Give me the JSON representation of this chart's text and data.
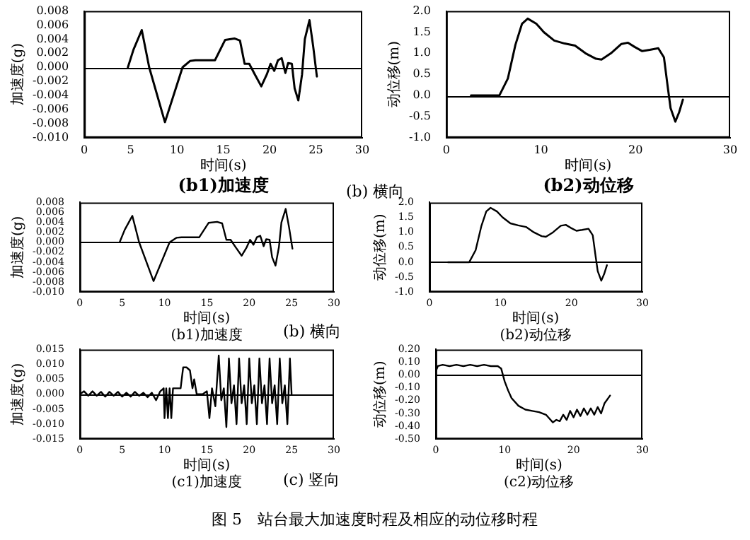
{
  "chart_data": [
    {
      "type": "line",
      "title": "(b1)加速度",
      "xlabel": "时间(s)",
      "ylabel": "加速度(g)",
      "color": "#000000",
      "annotations": [
        "(b) 横向"
      ],
      "ref_lines": [
        {
          "axis": "y",
          "value": 0
        }
      ],
      "x": [
        4.7,
        5.3,
        6.2,
        7.0,
        8.7,
        10.6,
        11.4,
        12.0,
        14.1,
        15.2,
        16.2,
        16.8,
        17.3,
        17.8,
        18.4,
        19.1,
        19.7,
        20.1,
        20.5,
        20.9,
        21.3,
        21.7,
        22.0,
        22.4,
        22.7,
        23.1,
        23.5,
        23.8,
        24.3,
        24.7,
        25.1
      ],
      "values": [
        0,
        0.0025,
        0.0053,
        0,
        -0.0078,
        0,
        0.0009,
        0.001,
        0.001,
        0.0039,
        0.0041,
        0.0038,
        0.0005,
        0.0005,
        -0.001,
        -0.0027,
        -0.001,
        0.0005,
        -0.0005,
        0.001,
        0.0013,
        -0.0008,
        0.0006,
        0.0005,
        -0.003,
        -0.0047,
        -0.001,
        0.004,
        0.0067,
        0.003,
        -0.0013
      ],
      "xlim": [
        0,
        30
      ],
      "xticks": [
        0,
        5,
        10,
        15,
        20,
        25,
        30
      ],
      "ylim": [
        -0.01,
        0.008
      ],
      "yticks": [
        {
          "value": 0.008,
          "label": "0.008"
        },
        {
          "value": 0.006,
          "label": "0.006"
        },
        {
          "value": 0.004,
          "label": "0.004"
        },
        {
          "value": 0.002,
          "label": "0.002"
        },
        {
          "value": 0,
          "label": "0.000"
        },
        {
          "value": -0.002,
          "label": "-0.002"
        },
        {
          "value": -0.004,
          "label": "-0.004"
        },
        {
          "value": -0.006,
          "label": "-0.006"
        },
        {
          "value": -0.008,
          "label": "-0.008"
        },
        {
          "value": -0.01,
          "label": "-0.010"
        }
      ]
    },
    {
      "type": "line",
      "title": "(b2)动位移",
      "xlabel": "时间(s)",
      "ylabel": "动位移(m)",
      "color": "#000000",
      "ref_lines": [
        {
          "axis": "y",
          "value": 0
        }
      ],
      "x": [
        2.6,
        5.6,
        6.5,
        7.3,
        8.0,
        8.6,
        9.5,
        10.3,
        11.4,
        12.5,
        13.6,
        14.7,
        15.8,
        16.4,
        17.4,
        18.5,
        19.2,
        19.9,
        20.7,
        21.5,
        22.4,
        23.0,
        23.4,
        23.7,
        24.2,
        24.6,
        25.0
      ],
      "values": [
        0,
        0,
        0.4,
        1.2,
        1.7,
        1.82,
        1.7,
        1.5,
        1.3,
        1.23,
        1.18,
        1.0,
        0.87,
        0.85,
        1.0,
        1.22,
        1.25,
        1.15,
        1.05,
        1.08,
        1.12,
        0.9,
        0.2,
        -0.3,
        -0.62,
        -0.4,
        -0.1
      ],
      "xlim": [
        0,
        30
      ],
      "xticks": [
        0,
        10,
        20,
        30
      ],
      "ylim": [
        -1,
        2
      ],
      "yticks": [
        {
          "value": 2,
          "label": "2.0"
        },
        {
          "value": 1.5,
          "label": "1.5"
        },
        {
          "value": 1,
          "label": "1.0"
        },
        {
          "value": 0.5,
          "label": "0.5"
        },
        {
          "value": 0,
          "label": "0.0"
        },
        {
          "value": -0.5,
          "label": "-0.5"
        },
        {
          "value": -1,
          "label": "-1.0"
        }
      ]
    },
    {
      "type": "line",
      "title": "(b1)加速度",
      "xlabel": "时间(s)",
      "ylabel": "加速度(g)",
      "color": "#000000",
      "annotations": [
        "(b) 横向"
      ],
      "ref_lines": [
        {
          "axis": "y",
          "value": 0
        }
      ],
      "x": [
        4.7,
        5.3,
        6.2,
        7.0,
        8.7,
        10.6,
        11.4,
        12.0,
        14.1,
        15.2,
        16.2,
        16.8,
        17.3,
        17.8,
        18.4,
        19.1,
        19.7,
        20.1,
        20.5,
        20.9,
        21.3,
        21.7,
        22.0,
        22.4,
        22.7,
        23.1,
        23.5,
        23.8,
        24.3,
        24.7,
        25.1
      ],
      "values": [
        0,
        0.0025,
        0.0053,
        0,
        -0.0078,
        0,
        0.0009,
        0.001,
        0.001,
        0.0039,
        0.0041,
        0.0038,
        0.0005,
        0.0005,
        -0.001,
        -0.0027,
        -0.001,
        0.0005,
        -0.0005,
        0.001,
        0.0013,
        -0.0008,
        0.0006,
        0.0005,
        -0.003,
        -0.0047,
        -0.001,
        0.004,
        0.0067,
        0.003,
        -0.0013
      ],
      "xlim": [
        0,
        30
      ],
      "xticks": [
        0,
        5,
        10,
        15,
        20,
        25,
        30
      ],
      "ylim": [
        -0.01,
        0.008
      ],
      "yticks": [
        {
          "value": 0.008,
          "label": "0.008"
        },
        {
          "value": 0.006,
          "label": "0.006"
        },
        {
          "value": 0.004,
          "label": "0.004"
        },
        {
          "value": 0.002,
          "label": "0.002"
        },
        {
          "value": 0,
          "label": "0.000"
        },
        {
          "value": -0.002,
          "label": "-0.002"
        },
        {
          "value": -0.004,
          "label": "-0.004"
        },
        {
          "value": -0.006,
          "label": "-0.006"
        },
        {
          "value": -0.008,
          "label": "-0.008"
        },
        {
          "value": -0.01,
          "label": "-0.010"
        }
      ]
    },
    {
      "type": "line",
      "title": "(b2)动位移",
      "xlabel": "时间(s)",
      "ylabel": "动位移(m)",
      "color": "#000000",
      "ref_lines": [
        {
          "axis": "y",
          "value": 0
        }
      ],
      "x": [
        2.6,
        5.6,
        6.5,
        7.3,
        8.0,
        8.6,
        9.5,
        10.3,
        11.4,
        12.5,
        13.6,
        14.7,
        15.8,
        16.4,
        17.4,
        18.5,
        19.2,
        19.9,
        20.7,
        21.5,
        22.4,
        23.0,
        23.4,
        23.7,
        24.2,
        24.6,
        25.0
      ],
      "values": [
        0,
        0,
        0.4,
        1.2,
        1.7,
        1.82,
        1.7,
        1.5,
        1.3,
        1.23,
        1.18,
        1.0,
        0.87,
        0.85,
        1.0,
        1.22,
        1.25,
        1.15,
        1.05,
        1.08,
        1.12,
        0.9,
        0.2,
        -0.3,
        -0.62,
        -0.4,
        -0.1
      ],
      "xlim": [
        0,
        30
      ],
      "xticks": [
        0,
        10,
        20,
        30
      ],
      "ylim": [
        -1,
        2
      ],
      "yticks": [
        {
          "value": 2,
          "label": "2.0"
        },
        {
          "value": 1.5,
          "label": "1.5"
        },
        {
          "value": 1,
          "label": "1.0"
        },
        {
          "value": 0.5,
          "label": "0.5"
        },
        {
          "value": 0,
          "label": "0.0"
        },
        {
          "value": -0.5,
          "label": "-0.5"
        },
        {
          "value": -1,
          "label": "-1.0"
        }
      ]
    },
    {
      "type": "line",
      "title": "(c1)加速度",
      "xlabel": "时间(s)",
      "ylabel": "加速度(g)",
      "color": "#000000",
      "annotations": [
        "(c) 竖向",
        "图 5　站台最大加速度时程及相应的动位移时程"
      ],
      "ref_lines": [
        {
          "axis": "y",
          "value": 0
        }
      ],
      "x": [
        0,
        0.5,
        1,
        1.5,
        2,
        2.5,
        3,
        3.5,
        4,
        4.5,
        5,
        5.5,
        6,
        6.5,
        7,
        7.5,
        8,
        8.5,
        9,
        9.5,
        9.9,
        10.0,
        10.2,
        10.4,
        10.6,
        10.8,
        11.0,
        11.5,
        11.9,
        12.2,
        12.6,
        13.0,
        13.3,
        13.5,
        13.8,
        14.5,
        15.0,
        15.3,
        15.6,
        16.0,
        16.4,
        16.7,
        17.0,
        17.3,
        17.6,
        17.9,
        18.2,
        18.5,
        18.8,
        19.1,
        19.4,
        19.7,
        20.0,
        20.3,
        20.6,
        20.9,
        21.2,
        21.5,
        21.8,
        22.1,
        22.4,
        22.7,
        23.0,
        23.3,
        23.6,
        23.9,
        24.2,
        24.5,
        24.8,
        25.0
      ],
      "values": [
        0,
        0.001,
        -0.0005,
        0.001,
        -0.0005,
        0.0008,
        -0.0008,
        0.0008,
        -0.0005,
        0.0008,
        -0.0008,
        0.0005,
        -0.0008,
        0.0008,
        -0.0005,
        0.0005,
        -0.001,
        0.0005,
        -0.002,
        0.001,
        0.002,
        -0.008,
        0.002,
        -0.008,
        0.002,
        -0.008,
        0.002,
        0.002,
        0.002,
        0.009,
        0.009,
        0.008,
        0.002,
        0.005,
        0,
        0,
        0.001,
        -0.008,
        0.002,
        -0.004,
        0.013,
        -0.002,
        0.002,
        -0.011,
        0.012,
        -0.003,
        0.003,
        -0.01,
        0.012,
        -0.003,
        0.003,
        -0.01,
        0.012,
        -0.003,
        0.003,
        -0.01,
        0.012,
        -0.003,
        0.003,
        -0.01,
        0.012,
        -0.003,
        0.003,
        -0.01,
        0.012,
        -0.003,
        0.003,
        -0.01,
        0.012,
        0
      ],
      "xlim": [
        0,
        30
      ],
      "xticks": [
        0,
        5,
        10,
        15,
        20,
        25,
        30
      ],
      "ylim": [
        -0.015,
        0.015
      ],
      "yticks": [
        {
          "value": 0.015,
          "label": "0.015"
        },
        {
          "value": 0.01,
          "label": "0.010"
        },
        {
          "value": 0.005,
          "label": "0.005"
        },
        {
          "value": 0,
          "label": "0.000"
        },
        {
          "value": -0.005,
          "label": "-0.005"
        },
        {
          "value": -0.01,
          "label": "-0.010"
        },
        {
          "value": -0.015,
          "label": "-0.015"
        }
      ]
    },
    {
      "type": "line",
      "title": "(c2)动位移",
      "xlabel": "时间(s)",
      "ylabel": "动位移(m)",
      "color": "#000000",
      "ref_lines": [
        {
          "axis": "y",
          "value": 0
        }
      ],
      "x": [
        0,
        0.3,
        1,
        2,
        3,
        4,
        5,
        6,
        7,
        8,
        9,
        9.5,
        10,
        10.5,
        11,
        12,
        13,
        14,
        15,
        16,
        16.5,
        17,
        17.5,
        18,
        18.5,
        19,
        19.5,
        20,
        20.5,
        21,
        21.5,
        22,
        22.5,
        23,
        23.5,
        24,
        24.5,
        25.3
      ],
      "values": [
        0.03,
        0.07,
        0.08,
        0.07,
        0.08,
        0.07,
        0.08,
        0.07,
        0.08,
        0.07,
        0.07,
        0.05,
        -0.05,
        -0.12,
        -0.18,
        -0.24,
        -0.27,
        -0.28,
        -0.29,
        -0.31,
        -0.34,
        -0.37,
        -0.35,
        -0.36,
        -0.31,
        -0.35,
        -0.28,
        -0.33,
        -0.27,
        -0.32,
        -0.26,
        -0.31,
        -0.26,
        -0.31,
        -0.25,
        -0.3,
        -0.22,
        -0.16
      ],
      "xlim": [
        0,
        30
      ],
      "xticks": [
        0,
        10,
        20,
        30
      ],
      "ylim": [
        -0.5,
        0.2
      ],
      "yticks": [
        {
          "value": 0.2,
          "label": "0.20"
        },
        {
          "value": 0.1,
          "label": "0.10"
        },
        {
          "value": 0,
          "label": "0.00"
        },
        {
          "value": -0.1,
          "label": "-0.10"
        },
        {
          "value": -0.2,
          "label": "-0.20"
        },
        {
          "value": -0.3,
          "label": "-0.30"
        },
        {
          "value": -0.4,
          "label": "-0.40"
        },
        {
          "value": -0.5,
          "label": "-0.50"
        }
      ]
    }
  ]
}
